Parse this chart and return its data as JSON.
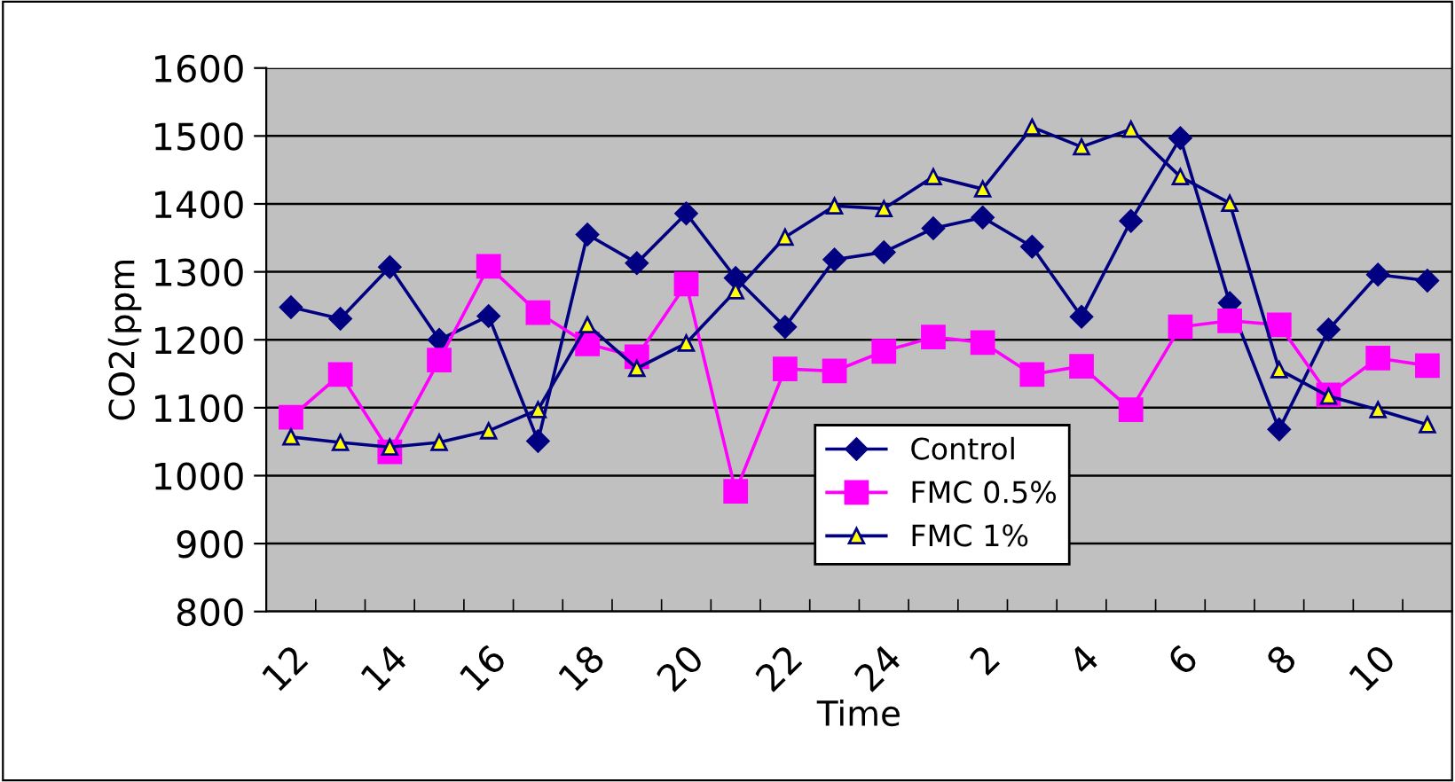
{
  "chart_data": {
    "type": "line",
    "xlabel": "Time",
    "ylabel": "CO2(ppm",
    "categories": [
      "12",
      null,
      "14",
      null,
      "16",
      null,
      "18",
      null,
      "20",
      null,
      "22",
      null,
      "24",
      null,
      "2",
      null,
      "4",
      null,
      "6",
      null,
      "8",
      null,
      "10",
      null
    ],
    "series": [
      {
        "name": "Control",
        "color": "#000080",
        "marker": "diamond",
        "values": [
          1248,
          1231,
          1307,
          1200,
          1235,
          1051,
          1355,
          1313,
          1386,
          1291,
          1219,
          1318,
          1329,
          1364,
          1380,
          1337,
          1234,
          1375,
          1497,
          1254,
          1068,
          1215,
          1296,
          1287
        ]
      },
      {
        "name": "FMC 0.5%",
        "color": "#ff00ff",
        "marker": "square",
        "values": [
          1086,
          1149,
          1035,
          1170,
          1308,
          1240,
          1194,
          1175,
          1282,
          977,
          1157,
          1154,
          1183,
          1204,
          1196,
          1149,
          1161,
          1097,
          1219,
          1228,
          1222,
          1119,
          1173,
          1162
        ]
      },
      {
        "name": "FMC 1%",
        "color": "#000080",
        "marker": "triangle",
        "values": [
          1057,
          1049,
          1042,
          1049,
          1066,
          1097,
          1222,
          1158,
          1195,
          1272,
          1351,
          1397,
          1393,
          1440,
          1422,
          1513,
          1484,
          1510,
          1440,
          1401,
          1156,
          1117,
          1097,
          1075
        ]
      }
    ],
    "ylim": [
      800,
      1600
    ],
    "yticks": [
      800,
      900,
      1000,
      1100,
      1200,
      1300,
      1400,
      1500,
      1600
    ],
    "grid": "y",
    "legend": "bottom",
    "line_style": "solid"
  }
}
